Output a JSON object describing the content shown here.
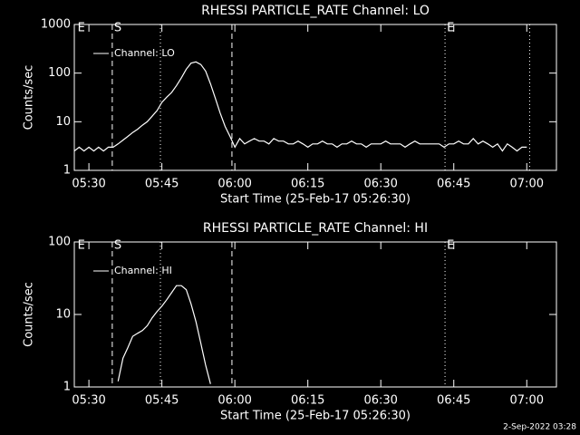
{
  "chart_data": [
    {
      "type": "line",
      "title": "RHESSI PARTICLE_RATE Channel: LO",
      "xlabel": "Start Time (25-Feb-17 05:26:30)",
      "ylabel": "Counts/sec",
      "log_y": true,
      "grid": false,
      "xlim": [
        327,
        426.1
      ],
      "ylim": [
        1,
        1000
      ],
      "xticks": [
        {
          "value": 330,
          "label": "05:30"
        },
        {
          "value": 345,
          "label": "05:45"
        },
        {
          "value": 360,
          "label": "06:00"
        },
        {
          "value": 375,
          "label": "06:15"
        },
        {
          "value": 390,
          "label": "06:30"
        },
        {
          "value": 405,
          "label": "06:45"
        },
        {
          "value": 420,
          "label": "07:00"
        }
      ],
      "yticks": [
        1,
        10,
        100,
        1000
      ],
      "markers": [
        {
          "x": 327.3,
          "label": "E"
        },
        {
          "x": 334.8,
          "style": "dashed",
          "label": "S"
        },
        {
          "x": 344.7,
          "style": "dotted"
        },
        {
          "x": 359.4,
          "style": "dashed"
        },
        {
          "x": 403.2,
          "style": "dotted",
          "label": "E"
        },
        {
          "x": 420.6,
          "style": "dotted"
        }
      ],
      "series": [
        {
          "name": "Channel: LO",
          "color": "#ffffff",
          "x": [
            327,
            328,
            329,
            330,
            331,
            332,
            333,
            334,
            335,
            336,
            337,
            338,
            339,
            340,
            341,
            342,
            343,
            344,
            345,
            346,
            347,
            348,
            349,
            350,
            351,
            352,
            353,
            354,
            355,
            356,
            357,
            358,
            359,
            360,
            361,
            362,
            363,
            364,
            365,
            366,
            367,
            368,
            369,
            370,
            371,
            372,
            373,
            374,
            375,
            376,
            377,
            378,
            379,
            380,
            381,
            382,
            383,
            384,
            385,
            386,
            387,
            388,
            389,
            390,
            391,
            392,
            393,
            394,
            395,
            396,
            397,
            398,
            399,
            400,
            401,
            402,
            403,
            404,
            405,
            406,
            407,
            408,
            409,
            410,
            411,
            412,
            413,
            414,
            415,
            416,
            417,
            418,
            419,
            420
          ],
          "values": [
            2.5,
            3,
            2.5,
            3,
            2.5,
            3,
            2.5,
            3,
            3,
            3.5,
            4.2,
            5,
            6,
            7,
            8.5,
            10,
            13,
            17,
            25,
            32,
            40,
            55,
            80,
            120,
            160,
            170,
            150,
            110,
            60,
            30,
            15,
            8,
            5,
            3,
            4.5,
            3.5,
            4,
            4.5,
            4,
            4,
            3.5,
            4.5,
            4,
            4,
            3.5,
            3.5,
            4,
            3.5,
            3,
            3.5,
            3.5,
            4,
            3.5,
            3.5,
            3,
            3.5,
            3.5,
            4,
            3.5,
            3.5,
            3,
            3.5,
            3.5,
            3.5,
            4,
            3.5,
            3.5,
            3.5,
            3,
            3.5,
            4,
            3.5,
            3.5,
            3.5,
            3.5,
            3.5,
            3,
            3.5,
            3.5,
            4,
            3.5,
            3.5,
            4.5,
            3.5,
            4,
            3.5,
            3,
            3.5,
            2.5,
            3.5,
            3,
            2.5,
            3,
            3
          ]
        }
      ]
    },
    {
      "type": "line",
      "title": "RHESSI PARTICLE_RATE Channel: HI",
      "xlabel": "Start Time (25-Feb-17 05:26:30)",
      "ylabel": "Counts/sec",
      "log_y": true,
      "grid": false,
      "xlim": [
        327,
        426.1
      ],
      "ylim": [
        1,
        100
      ],
      "xticks": [
        {
          "value": 330,
          "label": "05:30"
        },
        {
          "value": 345,
          "label": "05:45"
        },
        {
          "value": 360,
          "label": "06:00"
        },
        {
          "value": 375,
          "label": "06:15"
        },
        {
          "value": 390,
          "label": "06:30"
        },
        {
          "value": 405,
          "label": "06:45"
        },
        {
          "value": 420,
          "label": "07:00"
        }
      ],
      "yticks": [
        1,
        10,
        100
      ],
      "markers": [
        {
          "x": 327.3,
          "label": "E"
        },
        {
          "x": 334.8,
          "style": "dashed",
          "label": "S"
        },
        {
          "x": 344.7,
          "style": "dotted"
        },
        {
          "x": 359.4,
          "style": "dashed"
        },
        {
          "x": 403.2,
          "style": "dotted",
          "label": "E"
        }
      ],
      "series": [
        {
          "name": "Channel: HI",
          "color": "#ffffff",
          "x": [
            336,
            337,
            338,
            339,
            340,
            341,
            342,
            343,
            344,
            345,
            346,
            347,
            348,
            349,
            350,
            351,
            352,
            353,
            354,
            355
          ],
          "values": [
            1.2,
            2.5,
            3.5,
            5,
            5.5,
            6,
            7,
            9,
            11,
            13,
            16,
            20,
            25,
            25,
            22,
            14,
            8,
            4,
            2,
            1.1
          ]
        }
      ]
    }
  ],
  "footer": "2-Sep-2022 03:28"
}
